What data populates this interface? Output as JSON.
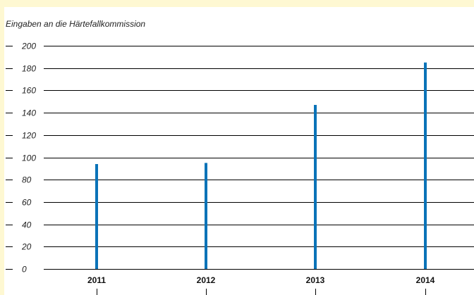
{
  "chart_data": {
    "type": "bar",
    "title": "Eingaben an die Härtefallkommission",
    "categories": [
      "2011",
      "2012",
      "2013",
      "2014"
    ],
    "values": [
      94,
      95,
      147,
      185
    ],
    "ylim": [
      0,
      200
    ],
    "yticks": [
      0,
      20,
      40,
      60,
      80,
      100,
      120,
      140,
      160,
      180,
      200
    ],
    "xlabel": "",
    "ylabel": "",
    "grid": true,
    "bar_color": "#0a73b8",
    "grid_color": "#000000",
    "page_background": "#fef8d2",
    "panel_background": "#ffffff"
  }
}
